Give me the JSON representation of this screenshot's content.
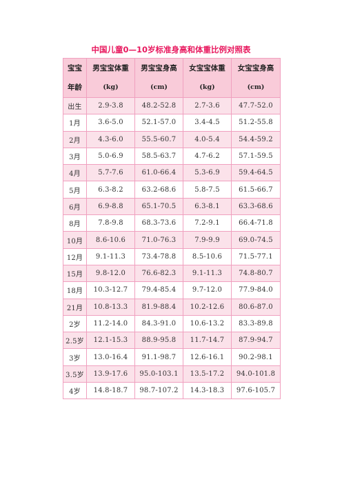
{
  "title": "中国儿童0—10岁标准身高和体重比例对照表",
  "headers": [
    {
      "line1": "宝宝",
      "line2": "年龄"
    },
    {
      "line1": "男宝宝体重",
      "line2": "(kg)"
    },
    {
      "line1": "男宝宝身高",
      "line2": "(cm)"
    },
    {
      "line1": "女宝宝体重",
      "line2": "(kg)"
    },
    {
      "line1": "女宝宝身高",
      "line2": "(cm)"
    }
  ],
  "rows": [
    [
      "出生",
      "2.9-3.8",
      "48.2-52.8",
      "2.7-3.6",
      "47.7-52.0"
    ],
    [
      "1月",
      "3.6-5.0",
      "52.1-57.0",
      "3.4-4.5",
      "51.2-55.8"
    ],
    [
      "2月",
      "4.3-6.0",
      "55.5-60.7",
      "4.0-5.4",
      "54.4-59.2"
    ],
    [
      "3月",
      "5.0-6.9",
      "58.5-63.7",
      "4.7-6.2",
      "57.1-59.5"
    ],
    [
      "4月",
      "5.7-7.6",
      "61.0-66.4",
      "5.3-6.9",
      "59.4-64.5"
    ],
    [
      "5月",
      "6.3-8.2",
      "63.2-68.6",
      "5.8-7.5",
      "61.5-66.7"
    ],
    [
      "6月",
      "6.9-8.8",
      "65.1-70.5",
      "6.3-8.1",
      "63.3-68.6"
    ],
    [
      "8月",
      "7.8-9.8",
      "68.3-73.6",
      "7.2-9.1",
      "66.4-71.8"
    ],
    [
      "10月",
      "8.6-10.6",
      "71.0-76.3",
      "7.9-9.9",
      "69.0-74.5"
    ],
    [
      "12月",
      "9.1-11.3",
      "73.4-78.8",
      "8.5-10.6",
      "71.5-77.1"
    ],
    [
      "15月",
      "9.8-12.0",
      "76.6-82.3",
      "9.1-11.3",
      "74.8-80.7"
    ],
    [
      "18月",
      "10.3-12.7",
      "79.4-85.4",
      "9.7-12.0",
      "77.9-84.0"
    ],
    [
      "21月",
      "10.8-13.3",
      "81.9-88.4",
      "10.2-12.6",
      "80.6-87.0"
    ],
    [
      "2岁",
      "11.2-14.0",
      "84.3-91.0",
      "10.6-13.2",
      "83.3-89.8"
    ],
    [
      "2.5岁",
      "12.1-15.3",
      "88.9-95.8",
      "11.7-14.7",
      "87.9-94.7"
    ],
    [
      "3岁",
      "13.0-16.4",
      "91.1-98.7",
      "12.6-16.1",
      "90.2-98.1"
    ],
    [
      "3.5岁",
      "13.9-17.6",
      "95.0-103.1",
      "13.5-17.2",
      "94.0-101.8"
    ],
    [
      "4岁",
      "14.8-18.7",
      "98.7-107.2",
      "14.3-18.3",
      "97.6-105.7"
    ]
  ],
  "colors": {
    "title": "#e8185e",
    "header_bg": "#f9cbd9",
    "shaded_row_bg": "#fbe2ea",
    "border": "#f0a0bf"
  }
}
